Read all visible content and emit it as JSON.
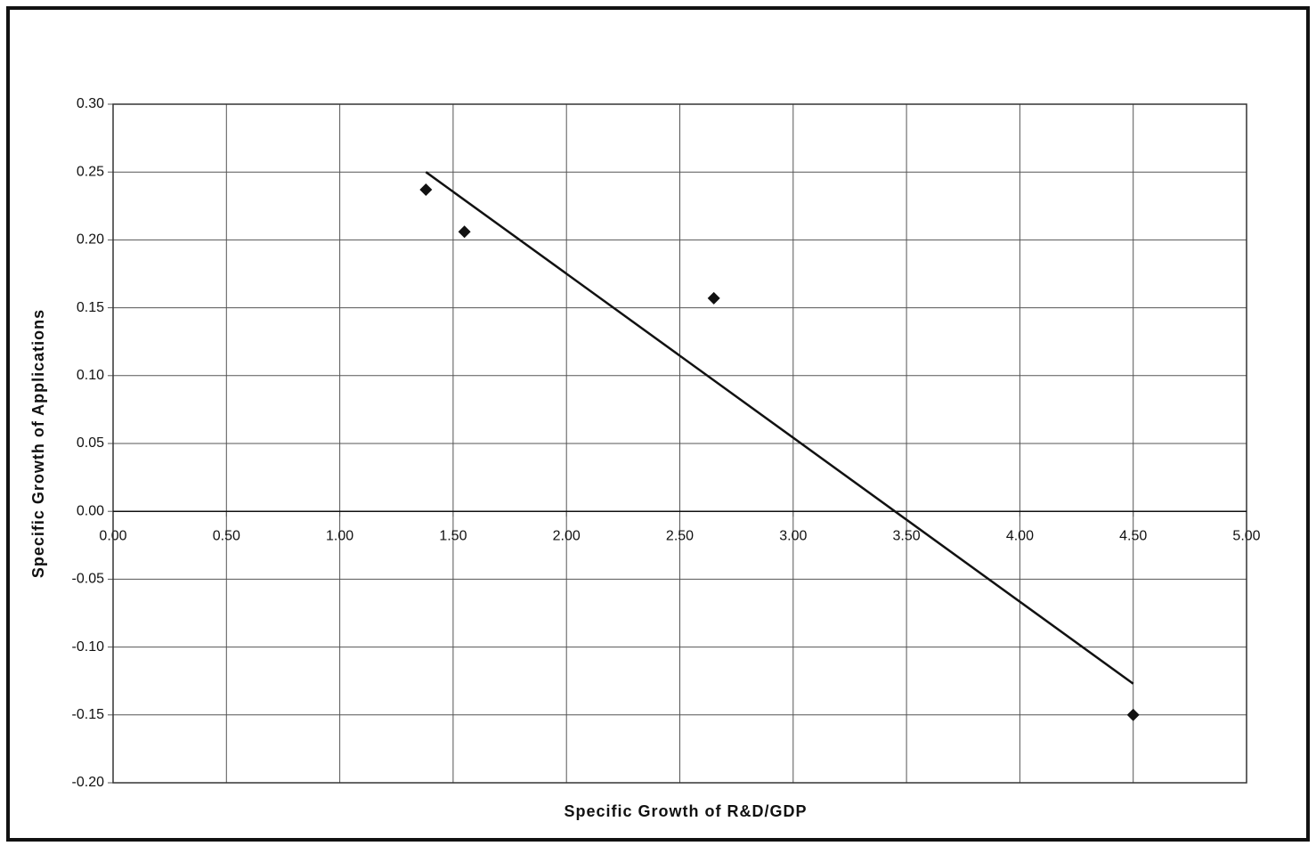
{
  "chart_data": {
    "type": "scatter",
    "x_label": "Specific Growth of R&D/GDP",
    "y_label": "Specific Growth of Applications",
    "x": [
      1.38,
      1.55,
      2.65,
      4.5
    ],
    "values": [
      0.237,
      0.206,
      0.157,
      -0.15
    ],
    "color": "#111111",
    "trendline": {
      "x": [
        1.38,
        4.5
      ],
      "values": [
        0.25,
        -0.127
      ],
      "color": "#111111"
    },
    "xlim": [
      0,
      5
    ],
    "xticks": [
      {
        "value": 0,
        "label": "0.00"
      },
      {
        "value": 0.5,
        "label": "0.50"
      },
      {
        "value": 1,
        "label": "1.00"
      },
      {
        "value": 1.5,
        "label": "1.50"
      },
      {
        "value": 2,
        "label": "2.00"
      },
      {
        "value": 2.5,
        "label": "2.50"
      },
      {
        "value": 3,
        "label": "3.00"
      },
      {
        "value": 3.5,
        "label": "3.50"
      },
      {
        "value": 4,
        "label": "4.00"
      },
      {
        "value": 4.5,
        "label": "4.50"
      },
      {
        "value": 5,
        "label": "5.00"
      }
    ],
    "ylim": [
      -0.2,
      0.3
    ],
    "yticks": [
      {
        "value": -0.2,
        "label": "-0.20"
      },
      {
        "value": -0.15,
        "label": "-0.15"
      },
      {
        "value": -0.1,
        "label": "-0.10"
      },
      {
        "value": -0.05,
        "label": "-0.05"
      },
      {
        "value": 0,
        "label": "0.00"
      },
      {
        "value": 0.05,
        "label": "0.05"
      },
      {
        "value": 0.1,
        "label": "0.10"
      },
      {
        "value": 0.15,
        "label": "0.15"
      },
      {
        "value": 0.2,
        "label": "0.20"
      },
      {
        "value": 0.25,
        "label": "0.25"
      },
      {
        "value": 0.3,
        "label": "0.30"
      }
    ],
    "grid": true
  }
}
